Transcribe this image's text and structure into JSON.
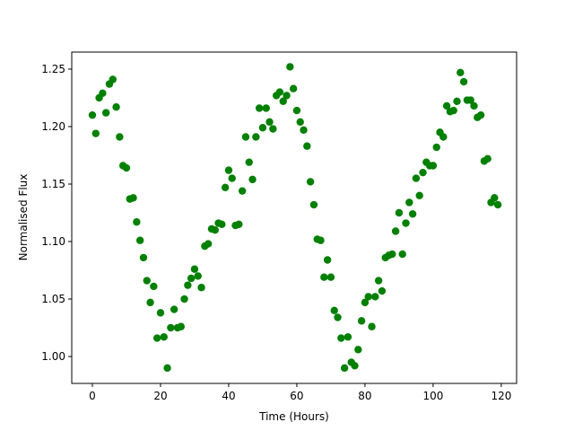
{
  "chart_data": {
    "type": "scatter",
    "x_label": "Time (Hours)",
    "y_label": "Normalised Flux",
    "color": "#008000",
    "grid": false,
    "xlim": [
      -6.05,
      124.5
    ],
    "ylim": [
      0.9766,
      1.2648
    ],
    "xticks": [
      0,
      20,
      40,
      60,
      80,
      100,
      120
    ],
    "yticks": [
      {
        "value": 1,
        "label": "1.00"
      },
      1.05,
      {
        "value": 1.1,
        "label": "1.10"
      },
      1.15,
      {
        "value": 1.2,
        "label": "1.20"
      },
      1.25
    ],
    "x": [
      0,
      1,
      2,
      3,
      4,
      5,
      6,
      7,
      8,
      9,
      10,
      11,
      12,
      13,
      14,
      15,
      16,
      17,
      18,
      19,
      20,
      21,
      22,
      23,
      24,
      25,
      26,
      27,
      28,
      29,
      30,
      31,
      32,
      33,
      34,
      35,
      36,
      37,
      38,
      39,
      40,
      41,
      42,
      43,
      44,
      45,
      46,
      47,
      48,
      49,
      50,
      51,
      52,
      53,
      54,
      55,
      56,
      57,
      58,
      59,
      60,
      61,
      62,
      63,
      64,
      65,
      66,
      67,
      68,
      69,
      70,
      71,
      72,
      73,
      74,
      75,
      76,
      77,
      78,
      79,
      80,
      81,
      82,
      83,
      84,
      85,
      86,
      87,
      88,
      89,
      90,
      91,
      92,
      93,
      94,
      95,
      96,
      97,
      98,
      99,
      100,
      101,
      102,
      103,
      104,
      105,
      106,
      107,
      108,
      109,
      110,
      111,
      112,
      113,
      114,
      115,
      116,
      117,
      118,
      119
    ],
    "values": [
      1.21,
      1.194,
      1.225,
      1.229,
      1.212,
      1.237,
      1.241,
      1.217,
      1.191,
      1.166,
      1.164,
      1.137,
      1.138,
      1.117,
      1.101,
      1.086,
      1.066,
      1.047,
      1.061,
      1.016,
      1.038,
      1.017,
      0.99,
      1.025,
      1.041,
      1.025,
      1.026,
      1.05,
      1.062,
      1.068,
      1.076,
      1.07,
      1.06,
      1.096,
      1.098,
      1.111,
      1.11,
      1.116,
      1.115,
      1.147,
      1.162,
      1.155,
      1.114,
      1.115,
      1.144,
      1.191,
      1.169,
      1.154,
      1.191,
      1.216,
      1.199,
      1.216,
      1.204,
      1.198,
      1.227,
      1.23,
      1.222,
      1.227,
      1.252,
      1.233,
      1.214,
      1.204,
      1.197,
      1.183,
      1.152,
      1.132,
      1.102,
      1.101,
      1.069,
      1.084,
      1.069,
      1.04,
      1.034,
      1.016,
      0.99,
      1.017,
      0.995,
      0.992,
      1.006,
      1.031,
      1.047,
      1.052,
      1.026,
      1.052,
      1.066,
      1.057,
      1.086,
      1.088,
      1.089,
      1.109,
      1.125,
      1.089,
      1.116,
      1.134,
      1.124,
      1.155,
      1.14,
      1.16,
      1.169,
      1.166,
      1.166,
      1.182,
      1.195,
      1.191,
      1.218,
      1.213,
      1.214,
      1.222,
      1.247,
      1.239,
      1.223,
      1.223,
      1.218,
      1.208,
      1.21,
      1.17,
      1.172,
      1.134,
      1.138,
      1.132
    ]
  }
}
